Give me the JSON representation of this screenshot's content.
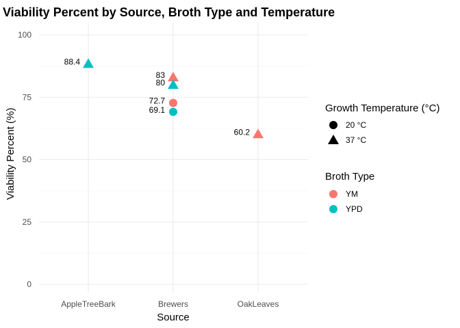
{
  "chart_data": {
    "type": "scatter",
    "title": "Viability Percent by Source, Broth Type and Temperature",
    "xlabel": "Source",
    "ylabel": "Viability Percent (%)",
    "categories": [
      "AppleTreeBark",
      "Brewers",
      "OakLeaves"
    ],
    "ylim": [
      0,
      100
    ],
    "yticks": [
      0,
      25,
      50,
      75,
      100
    ],
    "grid": true,
    "legend_placement": "right",
    "legends": [
      {
        "title": "Growth Temperature (°C)",
        "items": [
          {
            "label": "20 °C",
            "shape": "circle"
          },
          {
            "label": "37 °C",
            "shape": "triangle"
          }
        ]
      },
      {
        "title": "Broth Type",
        "items": [
          {
            "label": "YM",
            "color": "#F8766D"
          },
          {
            "label": "YPD",
            "color": "#00BFC4"
          }
        ]
      }
    ],
    "points": [
      {
        "source": "AppleTreeBark",
        "broth": "YPD",
        "temperature": "37 °C",
        "value": 88.4,
        "label": "88.4"
      },
      {
        "source": "Brewers",
        "broth": "YM",
        "temperature": "37 °C",
        "value": 83,
        "label": "83"
      },
      {
        "source": "Brewers",
        "broth": "YPD",
        "temperature": "37 °C",
        "value": 80,
        "label": "80"
      },
      {
        "source": "Brewers",
        "broth": "YM",
        "temperature": "20 °C",
        "value": 72.7,
        "label": "72.7"
      },
      {
        "source": "Brewers",
        "broth": "YPD",
        "temperature": "20 °C",
        "value": 69.1,
        "label": "69.1"
      },
      {
        "source": "OakLeaves",
        "broth": "YM",
        "temperature": "37 °C",
        "value": 60.2,
        "label": "60.2"
      }
    ],
    "colors": {
      "YM": "#F8766D",
      "YPD": "#00BFC4"
    }
  }
}
